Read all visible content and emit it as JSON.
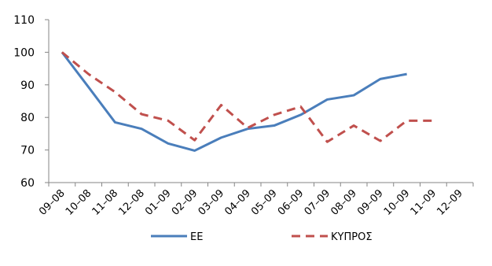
{
  "chart_data": {
    "type": "line",
    "title": "",
    "xlabel": "",
    "ylabel": "",
    "categories": [
      "09–08",
      "10–08",
      "11–08",
      "12–08",
      "01–09",
      "02–09",
      "03–09",
      "04–09",
      "05–09",
      "06–09",
      "07–09",
      "08–09",
      "09–09",
      "10–09",
      "11–09",
      "12–09"
    ],
    "ylim": [
      60,
      110
    ],
    "yticks": [
      60,
      70,
      80,
      90,
      100,
      110
    ],
    "grid": false,
    "legend": "bottom",
    "series": [
      {
        "name": "EE",
        "color": "#4a7ebb",
        "style": "solid",
        "values": [
          100,
          89.3,
          78.5,
          76.5,
          72.0,
          69.8,
          73.8,
          76.5,
          77.5,
          80.8,
          85.5,
          86.8,
          91.8,
          93.3,
          null,
          null
        ],
        "x_offset": 0
      },
      {
        "name": "ΚΥΠΡΟΣ",
        "color": "#c0504d",
        "style": "dashed",
        "values": [
          100,
          93.3,
          87.8,
          81.0,
          79.0,
          73.0,
          83.8,
          76.8,
          80.8,
          83.3,
          72.5,
          77.5,
          72.8,
          79.0,
          79.0,
          null
        ],
        "x_offset": 0
      }
    ]
  }
}
